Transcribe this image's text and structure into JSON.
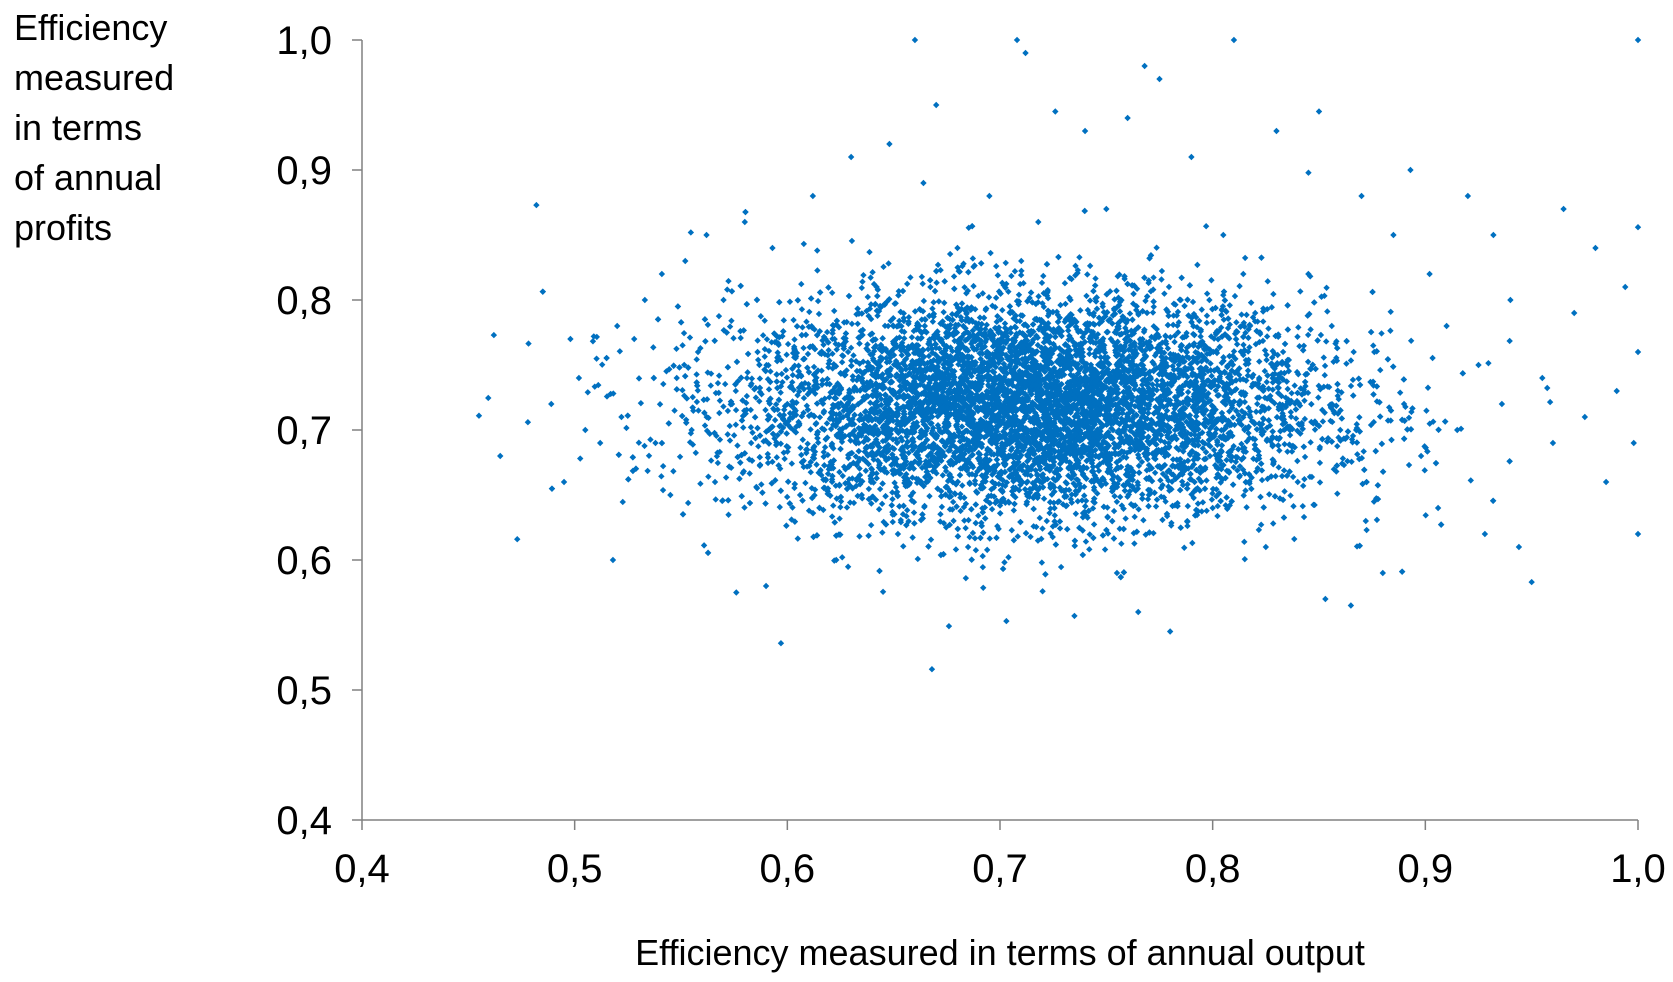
{
  "chart_data": {
    "type": "scatter",
    "title": "",
    "xlabel": "Efficiency measured in terms of annual output",
    "ylabel_lines": [
      "Efficiency",
      "measured",
      "in terms",
      "of annual",
      "profits"
    ],
    "xlim": [
      0.4,
      1.0
    ],
    "ylim": [
      0.4,
      1.0
    ],
    "x_ticks": [
      0.4,
      0.5,
      0.6,
      0.7,
      0.8,
      0.9,
      1.0
    ],
    "y_ticks": [
      0.4,
      0.5,
      0.6,
      0.7,
      0.8,
      0.9,
      1.0
    ],
    "x_tick_labels": [
      "0,4",
      "0,5",
      "0,6",
      "0,7",
      "0,8",
      "0,9",
      "1,0"
    ],
    "y_tick_labels": [
      "0,4",
      "0,5",
      "0,6",
      "0,7",
      "0,8",
      "0,9",
      "1,0"
    ],
    "grid": false,
    "legend": "none",
    "marker_color": "#0070C0",
    "axis_color": "#808080",
    "series": [
      {
        "name": "",
        "x": [
          0.455,
          0.462,
          0.465,
          0.473,
          0.478,
          0.482,
          0.489,
          0.495,
          0.498,
          0.502,
          0.505,
          0.509,
          0.512,
          0.518,
          0.52,
          0.522,
          0.528,
          0.533,
          0.538,
          0.541,
          0.545,
          0.548,
          0.552,
          0.555,
          0.558,
          0.562,
          0.566,
          0.57,
          0.574,
          0.576,
          0.58,
          0.583,
          0.586,
          0.59,
          0.593,
          0.597,
          0.6,
          0.606,
          0.612,
          0.618,
          0.623,
          0.63,
          0.636,
          0.642,
          0.648,
          0.652,
          0.658,
          0.66,
          0.664,
          0.668,
          0.67,
          0.674,
          0.68,
          0.685,
          0.69,
          0.695,
          0.7,
          0.703,
          0.705,
          0.708,
          0.71,
          0.712,
          0.718,
          0.722,
          0.726,
          0.73,
          0.735,
          0.74,
          0.745,
          0.75,
          0.755,
          0.758,
          0.76,
          0.765,
          0.768,
          0.77,
          0.775,
          0.78,
          0.785,
          0.79,
          0.795,
          0.8,
          0.805,
          0.81,
          0.815,
          0.82,
          0.825,
          0.83,
          0.835,
          0.84,
          0.845,
          0.85,
          0.853,
          0.856,
          0.86,
          0.865,
          0.87,
          0.872,
          0.876,
          0.88,
          0.885,
          0.89,
          0.893,
          0.898,
          0.902,
          0.906,
          0.91,
          0.915,
          0.92,
          0.925,
          0.928,
          0.932,
          0.936,
          0.94,
          0.944,
          0.95,
          0.955,
          0.96,
          0.965,
          0.97,
          0.975,
          0.98,
          0.985,
          0.99,
          0.994,
          0.998,
          1.0,
          1.0,
          1.0,
          1.0
        ],
        "y": [
          0.711,
          0.773,
          0.68,
          0.616,
          0.706,
          0.873,
          0.72,
          0.66,
          0.77,
          0.74,
          0.7,
          0.772,
          0.69,
          0.6,
          0.78,
          0.71,
          0.77,
          0.8,
          0.69,
          0.82,
          0.65,
          0.74,
          0.83,
          0.7,
          0.76,
          0.85,
          0.66,
          0.8,
          0.72,
          0.575,
          0.86,
          0.69,
          0.76,
          0.58,
          0.84,
          0.536,
          0.72,
          0.65,
          0.88,
          0.77,
          0.6,
          0.91,
          0.7,
          0.81,
          0.92,
          0.62,
          0.75,
          1.0,
          0.89,
          0.516,
          0.95,
          0.68,
          0.84,
          0.61,
          0.77,
          0.88,
          0.73,
          0.553,
          0.67,
          1.0,
          0.83,
          0.99,
          0.86,
          0.63,
          0.945,
          0.76,
          0.557,
          0.93,
          0.69,
          0.87,
          0.59,
          0.72,
          0.94,
          0.56,
          0.98,
          0.65,
          0.97,
          0.545,
          0.8,
          0.91,
          0.73,
          0.64,
          0.85,
          1.0,
          0.7,
          0.79,
          0.61,
          0.93,
          0.75,
          0.66,
          0.82,
          0.945,
          0.57,
          0.78,
          0.7,
          0.565,
          0.88,
          0.63,
          0.76,
          0.59,
          0.85,
          0.72,
          0.9,
          0.68,
          0.82,
          0.64,
          0.78,
          0.7,
          0.88,
          0.75,
          0.62,
          0.85,
          0.72,
          0.8,
          0.61,
          0.583,
          0.74,
          0.69,
          0.87,
          0.79,
          0.71,
          0.84,
          0.66,
          0.73,
          0.81,
          0.69,
          1.0,
          0.856,
          0.62,
          0.76
        ]
      }
    ]
  }
}
